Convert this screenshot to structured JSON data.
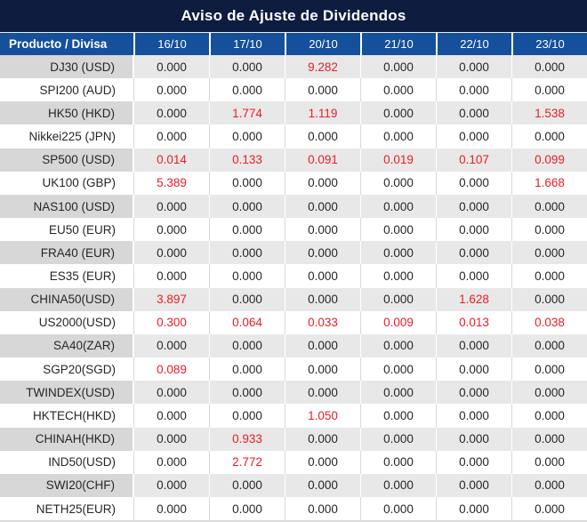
{
  "title": "Aviso de Ajuste de Dividendos",
  "colors": {
    "title_bg": "#0d1c3f",
    "header_bg": "#15509c",
    "header_text": "#ffffff",
    "row_gray_bg": "#e8e8e8",
    "row_gray_product_bg": "#d7d7d7",
    "row_white_bg": "#ffffff",
    "divider_light": "#d9d9d9",
    "value_red": "#ec1c24",
    "value_dark": "#262626"
  },
  "chart_data": {
    "type": "table",
    "title": "Aviso de Ajuste de Dividendos",
    "product_column_header": "Producto / Divisa",
    "date_column_headers": [
      "16/10",
      "17/10",
      "20/10",
      "21/10",
      "22/10",
      "23/10"
    ],
    "highlight_rule": "non-zero dividend adjustment values are rendered in red",
    "rows": [
      {
        "product": "DJ30 (USD)",
        "values": [
          "0.000",
          "0.000",
          "9.282",
          "0.000",
          "0.000",
          "0.000"
        ]
      },
      {
        "product": "SPI200 (AUD)",
        "values": [
          "0.000",
          "0.000",
          "0.000",
          "0.000",
          "0.000",
          "0.000"
        ]
      },
      {
        "product": "HK50 (HKD)",
        "values": [
          "0.000",
          "1.774",
          "1.119",
          "0.000",
          "0.000",
          "1.538"
        ]
      },
      {
        "product": "Nikkei225 (JPN)",
        "values": [
          "0.000",
          "0.000",
          "0.000",
          "0.000",
          "0.000",
          "0.000"
        ]
      },
      {
        "product": "SP500 (USD)",
        "values": [
          "0.014",
          "0.133",
          "0.091",
          "0.019",
          "0.107",
          "0.099"
        ]
      },
      {
        "product": "UK100 (GBP)",
        "values": [
          "5.389",
          "0.000",
          "0.000",
          "0.000",
          "0.000",
          "1.668"
        ]
      },
      {
        "product": "NAS100 (USD)",
        "values": [
          "0.000",
          "0.000",
          "0.000",
          "0.000",
          "0.000",
          "0.000"
        ]
      },
      {
        "product": "EU50 (EUR)",
        "values": [
          "0.000",
          "0.000",
          "0.000",
          "0.000",
          "0.000",
          "0.000"
        ]
      },
      {
        "product": "FRA40 (EUR)",
        "values": [
          "0.000",
          "0.000",
          "0.000",
          "0.000",
          "0.000",
          "0.000"
        ]
      },
      {
        "product": "ES35 (EUR)",
        "values": [
          "0.000",
          "0.000",
          "0.000",
          "0.000",
          "0.000",
          "0.000"
        ]
      },
      {
        "product": "CHINA50(USD)",
        "values": [
          "3.897",
          "0.000",
          "0.000",
          "0.000",
          "1.628",
          "0.000"
        ]
      },
      {
        "product": "US2000(USD)",
        "values": [
          "0.300",
          "0.064",
          "0.033",
          "0.009",
          "0.013",
          "0.038"
        ]
      },
      {
        "product": "SA40(ZAR)",
        "values": [
          "0.000",
          "0.000",
          "0.000",
          "0.000",
          "0.000",
          "0.000"
        ]
      },
      {
        "product": "SGP20(SGD)",
        "values": [
          "0.089",
          "0.000",
          "0.000",
          "0.000",
          "0.000",
          "0.000"
        ]
      },
      {
        "product": "TWINDEX(USD)",
        "values": [
          "0.000",
          "0.000",
          "0.000",
          "0.000",
          "0.000",
          "0.000"
        ]
      },
      {
        "product": "HKTECH(HKD)",
        "values": [
          "0.000",
          "0.000",
          "1.050",
          "0.000",
          "0.000",
          "0.000"
        ]
      },
      {
        "product": "CHINAH(HKD)",
        "values": [
          "0.000",
          "0.933",
          "0.000",
          "0.000",
          "0.000",
          "0.000"
        ]
      },
      {
        "product": "IND50(USD)",
        "values": [
          "0.000",
          "2.772",
          "0.000",
          "0.000",
          "0.000",
          "0.000"
        ]
      },
      {
        "product": "SWI20(CHF)",
        "values": [
          "0.000",
          "0.000",
          "0.000",
          "0.000",
          "0.000",
          "0.000"
        ]
      },
      {
        "product": "NETH25(EUR)",
        "values": [
          "0.000",
          "0.000",
          "0.000",
          "0.000",
          "0.000",
          "0.000"
        ]
      }
    ]
  }
}
